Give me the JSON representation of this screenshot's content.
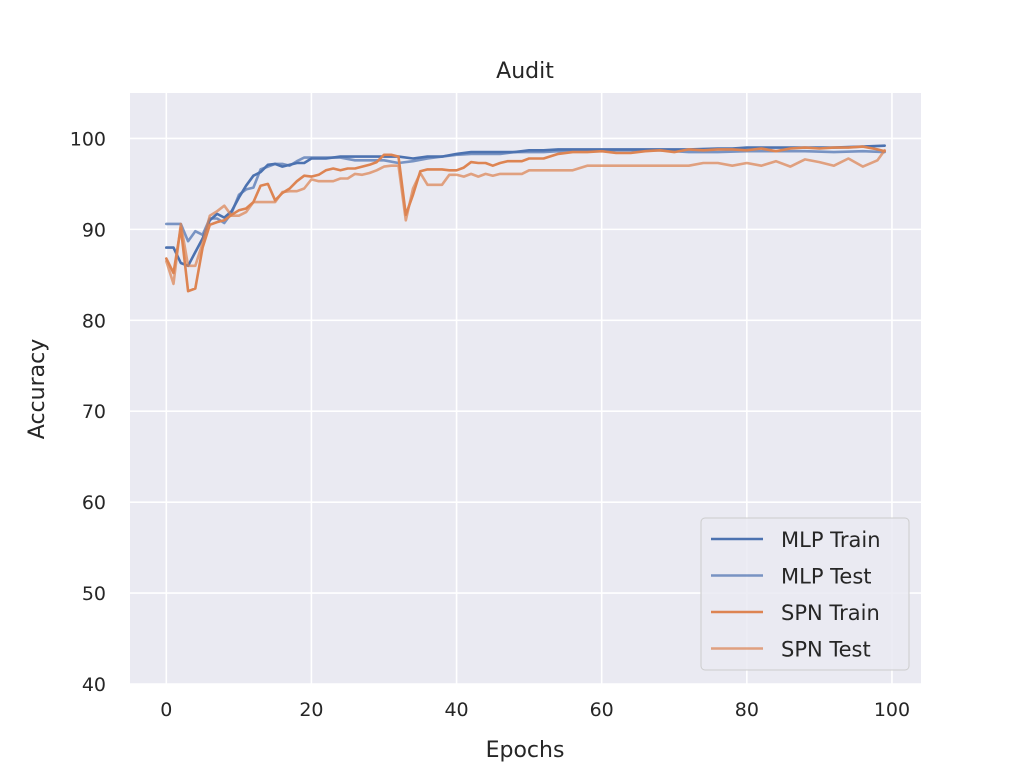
{
  "chart_data": {
    "type": "line",
    "title": "Audit",
    "xlabel": "Epochs",
    "ylabel": "Accuracy",
    "xlim": [
      -5,
      104
    ],
    "ylim": [
      40,
      105
    ],
    "xticks": [
      0,
      20,
      40,
      60,
      80,
      100
    ],
    "yticks": [
      40,
      50,
      60,
      70,
      80,
      90,
      100
    ],
    "grid": true,
    "legend_position": "lower-right",
    "series": [
      {
        "name": "MLP Train",
        "color": "#4c72b0",
        "opacity": 1.0,
        "x": [
          0,
          1,
          2,
          3,
          4,
          5,
          6,
          7,
          8,
          9,
          10,
          11,
          12,
          13,
          14,
          15,
          16,
          17,
          18,
          19,
          20,
          22,
          24,
          26,
          28,
          30,
          32,
          34,
          36,
          38,
          40,
          42,
          44,
          46,
          48,
          50,
          52,
          54,
          56,
          58,
          60,
          64,
          68,
          72,
          76,
          78,
          80,
          84,
          88,
          92,
          96,
          99
        ],
        "y": [
          88,
          88,
          86.3,
          86,
          87.5,
          89,
          91,
          91.7,
          91.3,
          92,
          93.5,
          94.8,
          95.9,
          96.3,
          97.1,
          97.2,
          96.9,
          97.1,
          97.3,
          97.3,
          97.8,
          97.8,
          98,
          98,
          98,
          98,
          98,
          97.8,
          98,
          98,
          98.3,
          98.5,
          98.5,
          98.5,
          98.5,
          98.7,
          98.7,
          98.8,
          98.8,
          98.8,
          98.8,
          98.8,
          98.8,
          98.8,
          98.9,
          98.9,
          99,
          99,
          99,
          99,
          99.1,
          99.2
        ]
      },
      {
        "name": "MLP Test",
        "color": "#4c72b0",
        "opacity": 0.72,
        "x": [
          0,
          1,
          2,
          3,
          4,
          5,
          6,
          7,
          8,
          9,
          10,
          11,
          12,
          13,
          14,
          15,
          16,
          17,
          18,
          19,
          20,
          22,
          24,
          26,
          28,
          30,
          32,
          34,
          36,
          38,
          40,
          42,
          44,
          46,
          48,
          50,
          52,
          54,
          56,
          58,
          60,
          64,
          68,
          72,
          76,
          80,
          84,
          88,
          92,
          96,
          99
        ],
        "y": [
          90.6,
          90.6,
          90.6,
          88.7,
          89.8,
          89.4,
          91.2,
          91.2,
          90.7,
          91.8,
          93.8,
          94.4,
          94.6,
          96.6,
          96.9,
          97.2,
          97.2,
          97,
          97.5,
          97.9,
          97.9,
          97.9,
          97.9,
          97.6,
          97.6,
          97.6,
          97.3,
          97.5,
          97.8,
          98,
          98.2,
          98.3,
          98.3,
          98.3,
          98.5,
          98.5,
          98.5,
          98.6,
          98.6,
          98.7,
          98.7,
          98.7,
          98.7,
          98.5,
          98.5,
          98.6,
          98.6,
          98.6,
          98.5,
          98.6,
          98.5
        ]
      },
      {
        "name": "SPN Train",
        "color": "#dd8452",
        "opacity": 1.0,
        "x": [
          0,
          1,
          2,
          3,
          4,
          5,
          6,
          7,
          8,
          9,
          10,
          11,
          12,
          13,
          14,
          15,
          16,
          17,
          18,
          19,
          20,
          21,
          22,
          23,
          24,
          25,
          26,
          27,
          28,
          29,
          30,
          31,
          32,
          33,
          34,
          35,
          36,
          37,
          38,
          39,
          40,
          41,
          42,
          43,
          44,
          45,
          46,
          47,
          48,
          49,
          50,
          52,
          54,
          56,
          58,
          60,
          62,
          64,
          66,
          68,
          70,
          72,
          74,
          76,
          78,
          80,
          82,
          84,
          86,
          88,
          90,
          92,
          94,
          96,
          98,
          99
        ],
        "y": [
          86.8,
          85.2,
          90.2,
          83.2,
          83.5,
          88,
          90.5,
          90.8,
          91,
          91.6,
          92.1,
          92.3,
          93,
          94.8,
          95,
          93.2,
          94,
          94.5,
          95.3,
          95.9,
          95.8,
          96,
          96.5,
          96.7,
          96.5,
          96.7,
          96.7,
          96.9,
          97.1,
          97.4,
          98.2,
          98.2,
          98,
          91.6,
          93.8,
          96.4,
          96.6,
          96.6,
          96.6,
          96.5,
          96.5,
          96.8,
          97.4,
          97.3,
          97.3,
          97,
          97.3,
          97.5,
          97.5,
          97.5,
          97.8,
          97.8,
          98.3,
          98.5,
          98.5,
          98.6,
          98.4,
          98.4,
          98.6,
          98.7,
          98.5,
          98.8,
          98.7,
          98.8,
          98.8,
          98.7,
          98.9,
          98.6,
          98.9,
          99,
          98.9,
          99,
          99,
          99.1,
          98.8,
          98.6
        ]
      },
      {
        "name": "SPN Test",
        "color": "#dd8452",
        "opacity": 0.72,
        "x": [
          0,
          1,
          2,
          3,
          4,
          5,
          6,
          7,
          8,
          9,
          10,
          11,
          12,
          13,
          14,
          15,
          16,
          17,
          18,
          19,
          20,
          21,
          22,
          23,
          24,
          25,
          26,
          27,
          28,
          29,
          30,
          31,
          32,
          33,
          34,
          35,
          36,
          37,
          38,
          39,
          40,
          41,
          42,
          43,
          44,
          45,
          46,
          47,
          48,
          49,
          50,
          52,
          54,
          56,
          58,
          60,
          62,
          64,
          66,
          68,
          70,
          72,
          74,
          76,
          78,
          80,
          82,
          84,
          86,
          88,
          90,
          92,
          94,
          96,
          98,
          99
        ],
        "y": [
          86.5,
          84,
          90.6,
          86,
          86,
          88.5,
          91.5,
          92,
          92.6,
          91.5,
          91.5,
          91.9,
          93,
          93,
          93,
          93,
          94.1,
          94.2,
          94.2,
          94.5,
          95.5,
          95.3,
          95.3,
          95.3,
          95.6,
          95.6,
          96.1,
          96,
          96.2,
          96.5,
          96.9,
          97,
          97,
          91,
          94.5,
          96.2,
          94.9,
          94.9,
          94.9,
          96,
          96,
          95.8,
          96.1,
          95.8,
          96.1,
          95.9,
          96.1,
          96.1,
          96.1,
          96.1,
          96.5,
          96.5,
          96.5,
          96.5,
          97,
          97,
          97,
          97,
          97,
          97,
          97,
          97,
          97.3,
          97.3,
          97,
          97.3,
          97,
          97.5,
          96.9,
          97.7,
          97.4,
          97,
          97.8,
          96.9,
          97.6,
          98.7
        ]
      }
    ]
  }
}
